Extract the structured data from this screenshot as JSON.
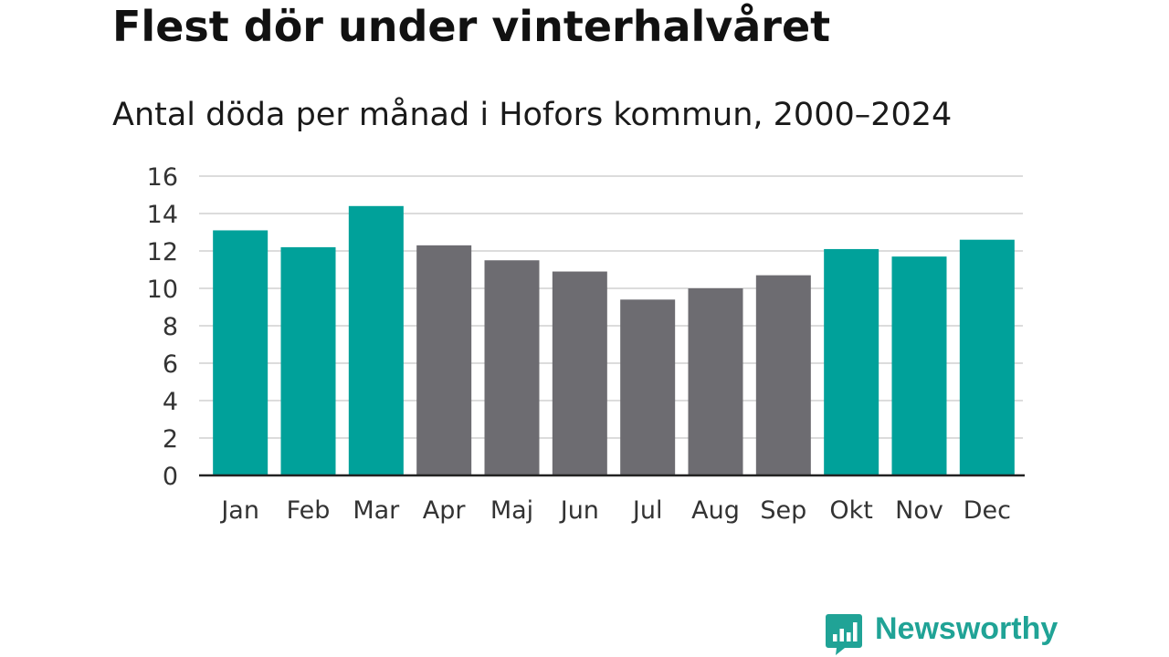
{
  "title": "Flest dör under vinterhalvåret",
  "subtitle": "Antal döda per månad i Hofors kommun, 2000–2024",
  "brand": {
    "name": "Newsworthy",
    "color": "#20a396"
  },
  "colors": {
    "winter": "#00a19a",
    "summer": "#6d6c71",
    "grid": "#dcdcdc",
    "axis": "#222222"
  },
  "chart_data": {
    "type": "bar",
    "title": "Flest dör under vinterhalvåret",
    "subtitle": "Antal döda per månad i Hofors kommun, 2000–2024",
    "xlabel": "",
    "ylabel": "",
    "ylim": [
      0,
      16
    ],
    "yticks": [
      0,
      2,
      4,
      6,
      8,
      10,
      12,
      14,
      16
    ],
    "grid": true,
    "categories": [
      "Jan",
      "Feb",
      "Mar",
      "Apr",
      "Maj",
      "Jun",
      "Jul",
      "Aug",
      "Sep",
      "Okt",
      "Nov",
      "Dec"
    ],
    "values": [
      13.1,
      12.2,
      14.4,
      12.3,
      11.5,
      10.9,
      9.4,
      10.0,
      10.7,
      12.1,
      11.7,
      12.6
    ],
    "group": [
      "winter",
      "winter",
      "winter",
      "summer",
      "summer",
      "summer",
      "summer",
      "summer",
      "summer",
      "winter",
      "winter",
      "winter"
    ]
  }
}
